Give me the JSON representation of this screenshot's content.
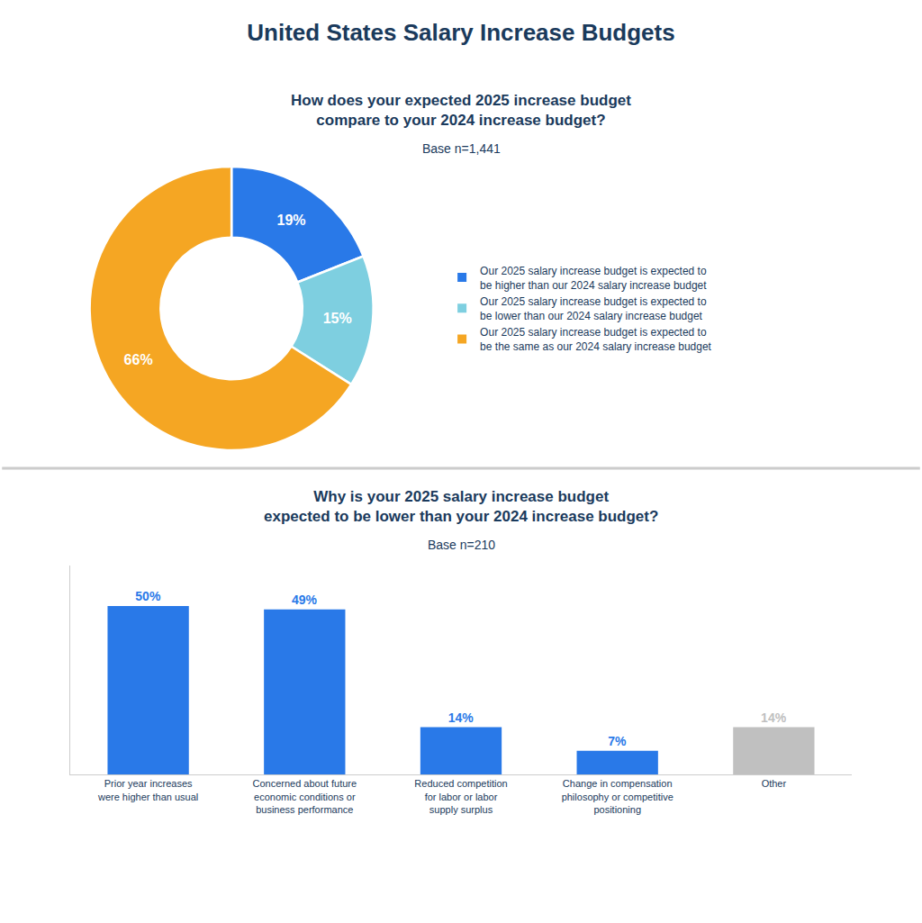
{
  "title": "United States Salary Increase Budgets",
  "chart_data": [
    {
      "type": "donut",
      "title": "How does your expected 2025 increase budget\ncompare to your 2024 increase budget?",
      "subtitle": "Base n=1,441",
      "categories": [
        "Our 2025 salary increase budget is expected to\nbe higher than our 2024 salary increase budget",
        "Our 2025 salary increase budget is expected to\nbe lower than our 2024 salary increase budget",
        "Our 2025 salary increase budget is expected to\nbe the same as our 2024 salary increase budget"
      ],
      "values": [
        19,
        15,
        66
      ],
      "value_labels": [
        "19%",
        "15%",
        "66%"
      ],
      "colors": [
        "#2979e8",
        "#7ecfe0",
        "#f5a623"
      ],
      "data_labels": true,
      "legend": "right"
    },
    {
      "type": "bar",
      "title": "Why is your 2025 salary increase budget\nexpected to be lower than your 2024 increase budget?",
      "subtitle": "Base n=210",
      "categories": [
        "Prior year increases\nwere higher than usual",
        "Concerned about future\neconomic conditions or\nbusiness performance",
        "Reduced competition\nfor labor or labor\nsupply surplus",
        "Change in compensation\nphilosophy or competitive\npositioning",
        "Other"
      ],
      "values": [
        50,
        49,
        14,
        7,
        14
      ],
      "value_labels": [
        "50%",
        "49%",
        "14%",
        "7%",
        "14%"
      ],
      "colors": [
        "#2979e8",
        "#2979e8",
        "#2979e8",
        "#2979e8",
        "#c0c0c0"
      ],
      "data_labels": true,
      "ylim": [
        0,
        62
      ],
      "tick_labels": "x",
      "grid": false
    }
  ]
}
